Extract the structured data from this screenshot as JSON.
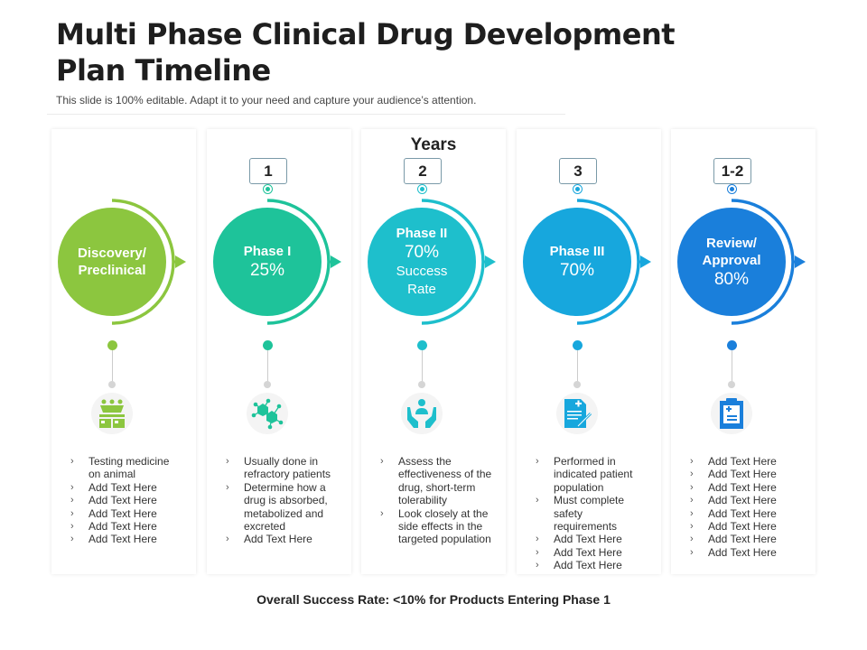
{
  "title": "Multi Phase Clinical Drug Development Plan Timeline",
  "subtitle": "This slide is 100% editable. Adapt it to your need and capture your audience’s attention.",
  "years_label": "Years",
  "footer": "Overall  Success Rate: <10% for Products Entering Phase 1",
  "phases": [
    {
      "label": "Discovery/\nPreclinical",
      "pct": "",
      "extra": "",
      "years": "",
      "color": "#8cc63f",
      "icon": "lab-animals-icon",
      "items": [
        "Testing medicine on animal",
        "Add Text Here",
        "Add Text Here",
        "Add Text Here",
        "Add Text Here",
        "Add Text Here"
      ]
    },
    {
      "label": "Phase I",
      "pct": "25%",
      "extra": "",
      "years": "1",
      "color": "#1ec39a",
      "icon": "molecule-network-icon",
      "items": [
        "Usually done in refractory patients",
        "Determine how a drug is absorbed, metabolized and excreted",
        "Add Text Here"
      ]
    },
    {
      "label": "Phase II",
      "pct": "70%",
      "extra": "Success\nRate",
      "years": "2",
      "color": "#1ebfcc",
      "icon": "hands-care-person-icon",
      "items": [
        "Assess the effectiveness of the drug, short-term tolerability",
        "Look closely at the side effects in the targeted population"
      ]
    },
    {
      "label": "Phase III",
      "pct": "70%",
      "extra": "",
      "years": "3",
      "color": "#17a7dd",
      "icon": "medical-document-pen-icon",
      "items": [
        "Performed in indicated patient population",
        "Must complete safety requirements",
        "Add Text Here",
        "Add Text Here",
        "Add Text Here"
      ]
    },
    {
      "label": "Review/\nApproval",
      "pct": "80%",
      "extra": "",
      "years": "1-2",
      "color": "#1a7fdb",
      "icon": "medical-clipboard-icon",
      "items": [
        "Add Text Here",
        "Add Text Here",
        "Add Text Here",
        "Add Text Here",
        "Add Text Here",
        "Add Text Here",
        "Add Text Here",
        "Add Text Here"
      ]
    }
  ]
}
